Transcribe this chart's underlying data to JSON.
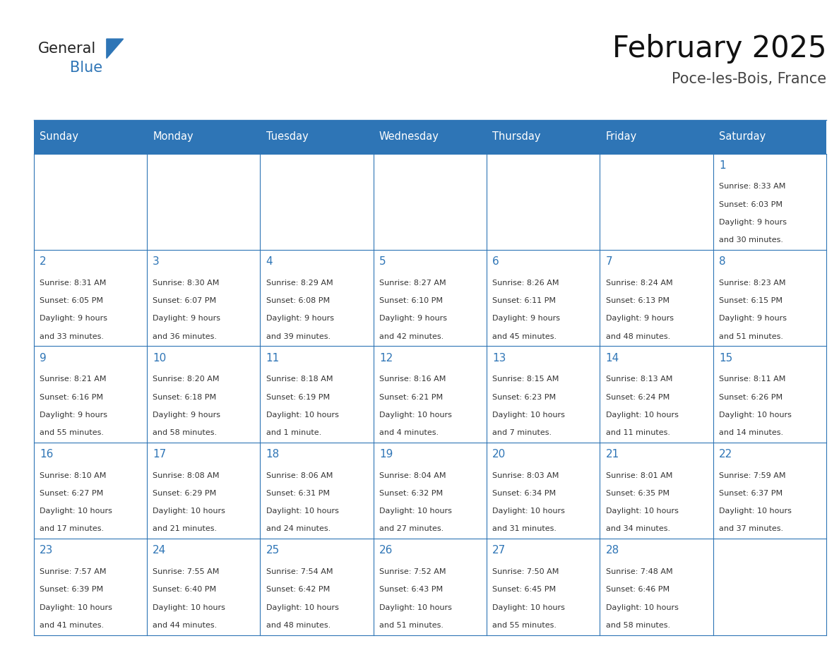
{
  "title": "February 2025",
  "subtitle": "Poce-les-Bois, France",
  "header_color": "#2E75B6",
  "header_text_color": "#FFFFFF",
  "cell_bg_color": "#FFFFFF",
  "border_color": "#2E75B6",
  "day_number_color": "#2E75B6",
  "text_color": "#333333",
  "days_of_week": [
    "Sunday",
    "Monday",
    "Tuesday",
    "Wednesday",
    "Thursday",
    "Friday",
    "Saturday"
  ],
  "num_cols": 7,
  "num_rows": 5,
  "calendar_data": [
    {
      "day": 1,
      "col": 6,
      "row": 0,
      "sunrise": "8:33 AM",
      "sunset": "6:03 PM",
      "daylight_l1": "9 hours",
      "daylight_l2": "and 30 minutes."
    },
    {
      "day": 2,
      "col": 0,
      "row": 1,
      "sunrise": "8:31 AM",
      "sunset": "6:05 PM",
      "daylight_l1": "9 hours",
      "daylight_l2": "and 33 minutes."
    },
    {
      "day": 3,
      "col": 1,
      "row": 1,
      "sunrise": "8:30 AM",
      "sunset": "6:07 PM",
      "daylight_l1": "9 hours",
      "daylight_l2": "and 36 minutes."
    },
    {
      "day": 4,
      "col": 2,
      "row": 1,
      "sunrise": "8:29 AM",
      "sunset": "6:08 PM",
      "daylight_l1": "9 hours",
      "daylight_l2": "and 39 minutes."
    },
    {
      "day": 5,
      "col": 3,
      "row": 1,
      "sunrise": "8:27 AM",
      "sunset": "6:10 PM",
      "daylight_l1": "9 hours",
      "daylight_l2": "and 42 minutes."
    },
    {
      "day": 6,
      "col": 4,
      "row": 1,
      "sunrise": "8:26 AM",
      "sunset": "6:11 PM",
      "daylight_l1": "9 hours",
      "daylight_l2": "and 45 minutes."
    },
    {
      "day": 7,
      "col": 5,
      "row": 1,
      "sunrise": "8:24 AM",
      "sunset": "6:13 PM",
      "daylight_l1": "9 hours",
      "daylight_l2": "and 48 minutes."
    },
    {
      "day": 8,
      "col": 6,
      "row": 1,
      "sunrise": "8:23 AM",
      "sunset": "6:15 PM",
      "daylight_l1": "9 hours",
      "daylight_l2": "and 51 minutes."
    },
    {
      "day": 9,
      "col": 0,
      "row": 2,
      "sunrise": "8:21 AM",
      "sunset": "6:16 PM",
      "daylight_l1": "9 hours",
      "daylight_l2": "and 55 minutes."
    },
    {
      "day": 10,
      "col": 1,
      "row": 2,
      "sunrise": "8:20 AM",
      "sunset": "6:18 PM",
      "daylight_l1": "9 hours",
      "daylight_l2": "and 58 minutes."
    },
    {
      "day": 11,
      "col": 2,
      "row": 2,
      "sunrise": "8:18 AM",
      "sunset": "6:19 PM",
      "daylight_l1": "10 hours",
      "daylight_l2": "and 1 minute."
    },
    {
      "day": 12,
      "col": 3,
      "row": 2,
      "sunrise": "8:16 AM",
      "sunset": "6:21 PM",
      "daylight_l1": "10 hours",
      "daylight_l2": "and 4 minutes."
    },
    {
      "day": 13,
      "col": 4,
      "row": 2,
      "sunrise": "8:15 AM",
      "sunset": "6:23 PM",
      "daylight_l1": "10 hours",
      "daylight_l2": "and 7 minutes."
    },
    {
      "day": 14,
      "col": 5,
      "row": 2,
      "sunrise": "8:13 AM",
      "sunset": "6:24 PM",
      "daylight_l1": "10 hours",
      "daylight_l2": "and 11 minutes."
    },
    {
      "day": 15,
      "col": 6,
      "row": 2,
      "sunrise": "8:11 AM",
      "sunset": "6:26 PM",
      "daylight_l1": "10 hours",
      "daylight_l2": "and 14 minutes."
    },
    {
      "day": 16,
      "col": 0,
      "row": 3,
      "sunrise": "8:10 AM",
      "sunset": "6:27 PM",
      "daylight_l1": "10 hours",
      "daylight_l2": "and 17 minutes."
    },
    {
      "day": 17,
      "col": 1,
      "row": 3,
      "sunrise": "8:08 AM",
      "sunset": "6:29 PM",
      "daylight_l1": "10 hours",
      "daylight_l2": "and 21 minutes."
    },
    {
      "day": 18,
      "col": 2,
      "row": 3,
      "sunrise": "8:06 AM",
      "sunset": "6:31 PM",
      "daylight_l1": "10 hours",
      "daylight_l2": "and 24 minutes."
    },
    {
      "day": 19,
      "col": 3,
      "row": 3,
      "sunrise": "8:04 AM",
      "sunset": "6:32 PM",
      "daylight_l1": "10 hours",
      "daylight_l2": "and 27 minutes."
    },
    {
      "day": 20,
      "col": 4,
      "row": 3,
      "sunrise": "8:03 AM",
      "sunset": "6:34 PM",
      "daylight_l1": "10 hours",
      "daylight_l2": "and 31 minutes."
    },
    {
      "day": 21,
      "col": 5,
      "row": 3,
      "sunrise": "8:01 AM",
      "sunset": "6:35 PM",
      "daylight_l1": "10 hours",
      "daylight_l2": "and 34 minutes."
    },
    {
      "day": 22,
      "col": 6,
      "row": 3,
      "sunrise": "7:59 AM",
      "sunset": "6:37 PM",
      "daylight_l1": "10 hours",
      "daylight_l2": "and 37 minutes."
    },
    {
      "day": 23,
      "col": 0,
      "row": 4,
      "sunrise": "7:57 AM",
      "sunset": "6:39 PM",
      "daylight_l1": "10 hours",
      "daylight_l2": "and 41 minutes."
    },
    {
      "day": 24,
      "col": 1,
      "row": 4,
      "sunrise": "7:55 AM",
      "sunset": "6:40 PM",
      "daylight_l1": "10 hours",
      "daylight_l2": "and 44 minutes."
    },
    {
      "day": 25,
      "col": 2,
      "row": 4,
      "sunrise": "7:54 AM",
      "sunset": "6:42 PM",
      "daylight_l1": "10 hours",
      "daylight_l2": "and 48 minutes."
    },
    {
      "day": 26,
      "col": 3,
      "row": 4,
      "sunrise": "7:52 AM",
      "sunset": "6:43 PM",
      "daylight_l1": "10 hours",
      "daylight_l2": "and 51 minutes."
    },
    {
      "day": 27,
      "col": 4,
      "row": 4,
      "sunrise": "7:50 AM",
      "sunset": "6:45 PM",
      "daylight_l1": "10 hours",
      "daylight_l2": "and 55 minutes."
    },
    {
      "day": 28,
      "col": 5,
      "row": 4,
      "sunrise": "7:48 AM",
      "sunset": "6:46 PM",
      "daylight_l1": "10 hours",
      "daylight_l2": "and 58 minutes."
    }
  ],
  "logo_text_general": "General",
  "logo_text_blue": "Blue",
  "logo_color_general": "#222222",
  "logo_color_blue": "#2E75B6",
  "logo_triangle_color": "#2E75B6"
}
